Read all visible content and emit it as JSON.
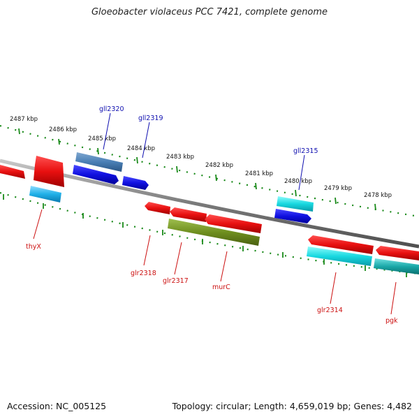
{
  "title": "Gloeobacter violaceus PCC 7421, complete genome",
  "accession": "Accession: NC_005125",
  "topology": "Topology: circular; Length: 4,659,019 bp; Genes: 4,482",
  "colors": {
    "tick": "#1a8a1a",
    "backbone": "#7a7a7a",
    "forward_label": "#1010b0",
    "reverse_label": "#cc1010",
    "red_gene": "#e81010",
    "blue_gene": "#1010e0",
    "steel_gene": "#4a7fb5",
    "cyan_gene": "#18c8c8",
    "light_blue_gene": "#20b0e8",
    "olive_gene": "#6f8f1f",
    "teal_gene": "#1aa8a8"
  },
  "kbp_labels": [
    "2487 kbp",
    "2486 kbp",
    "2485 kbp",
    "2484 kbp",
    "2483 kbp",
    "2482 kbp",
    "2481 kbp",
    "2480 kbp",
    "2479 kbp",
    "2478 kbp"
  ],
  "forward_gene_labels": [
    "gll2320",
    "gll2319",
    "gll2315"
  ],
  "reverse_gene_labels": [
    "thyX",
    "glr2318",
    "glr2317",
    "murC",
    "glr2314",
    "pgk"
  ]
}
